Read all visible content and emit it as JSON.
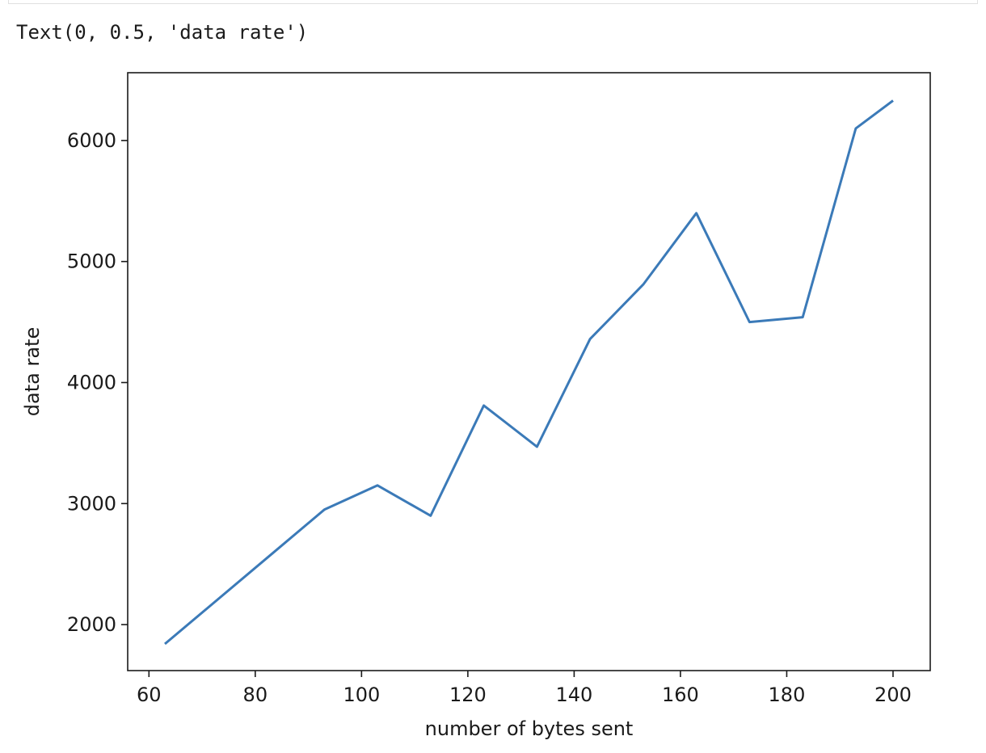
{
  "output": {
    "text": "Text(0, 0.5, 'data rate')"
  },
  "colors": {
    "line": "#3b7ab8",
    "axes": "#1a1a1a"
  },
  "chart_data": {
    "type": "line",
    "xlabel": "number of bytes sent",
    "ylabel": "data rate",
    "xlim": [
      56,
      207
    ],
    "ylim": [
      1620,
      6560
    ],
    "xticks": [
      60,
      80,
      100,
      120,
      140,
      160,
      180,
      200
    ],
    "yticks": [
      2000,
      3000,
      4000,
      5000,
      6000
    ],
    "grid": false,
    "x": [
      63,
      73,
      83,
      93,
      103,
      113,
      123,
      133,
      143,
      153,
      163,
      173,
      183,
      193,
      200
    ],
    "series": [
      {
        "values": [
          1840,
          2210,
          2580,
          2950,
          3150,
          2900,
          3810,
          3470,
          4360,
          4810,
          5400,
          4500,
          4540,
          6100,
          6330
        ]
      }
    ]
  }
}
